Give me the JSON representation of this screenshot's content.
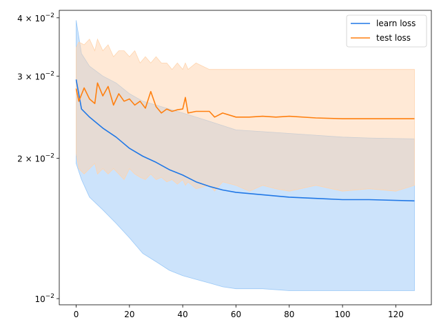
{
  "chart_data": {
    "type": "line",
    "title": "",
    "xlabel": "",
    "ylabel": "",
    "yscale": "log",
    "xlim": [
      -6.35,
      133.35
    ],
    "ylim": [
      0.0097,
      0.0415
    ],
    "grid": false,
    "legend_position": "top-right",
    "x_ticks": [
      0,
      20,
      40,
      60,
      80,
      100,
      120
    ],
    "x_tick_labels": [
      "0",
      "20",
      "40",
      "60",
      "80",
      "100",
      "120"
    ],
    "y_ticks": [
      0.01,
      0.02,
      0.03,
      0.04
    ],
    "y_tick_labels": [
      {
        "base": "10",
        "exp": "−2",
        "mant": ""
      },
      {
        "base": "10",
        "exp": "−2",
        "mant": "2 × "
      },
      {
        "base": "10",
        "exp": "−2",
        "mant": "3 × "
      },
      {
        "base": "10",
        "exp": "−2",
        "mant": "4 × "
      }
    ],
    "series": [
      {
        "name": "learn loss",
        "color": "#1f77e6",
        "band_color": "#99c8f7",
        "x": [
          0,
          2,
          5,
          10,
          15,
          20,
          25,
          30,
          35,
          40,
          45,
          50,
          55,
          60,
          70,
          80,
          90,
          100,
          110,
          127
        ],
        "mean": [
          0.0295,
          0.0255,
          0.0245,
          0.0232,
          0.0222,
          0.021,
          0.0202,
          0.0196,
          0.0189,
          0.0184,
          0.0178,
          0.0174,
          0.0171,
          0.0169,
          0.0167,
          0.0165,
          0.0164,
          0.0163,
          0.0163,
          0.0162
        ],
        "upper": [
          0.0395,
          0.0335,
          0.0315,
          0.03,
          0.029,
          0.0275,
          0.0265,
          0.026,
          0.0255,
          0.025,
          0.0245,
          0.024,
          0.0235,
          0.023,
          0.0228,
          0.0226,
          0.0224,
          0.0222,
          0.0221,
          0.022
        ],
        "lower": [
          0.0195,
          0.018,
          0.0165,
          0.0155,
          0.0145,
          0.0135,
          0.0125,
          0.012,
          0.0115,
          0.0112,
          0.011,
          0.0108,
          0.0106,
          0.0105,
          0.0105,
          0.0104,
          0.0104,
          0.0104,
          0.0104,
          0.0104
        ]
      },
      {
        "name": "test loss",
        "color": "#ff7f0e",
        "band_color": "#ffd4ad",
        "x": [
          0,
          1,
          3,
          5,
          7,
          8,
          10,
          12,
          14,
          16,
          18,
          20,
          22,
          24,
          26,
          28,
          30,
          32,
          34,
          36,
          38,
          40,
          41,
          42,
          45,
          50,
          52,
          55,
          60,
          65,
          70,
          75,
          80,
          90,
          100,
          110,
          120,
          127
        ],
        "mean": [
          0.0282,
          0.0265,
          0.0283,
          0.0268,
          0.0262,
          0.029,
          0.0272,
          0.0285,
          0.026,
          0.0275,
          0.0265,
          0.0268,
          0.026,
          0.0265,
          0.0256,
          0.0278,
          0.0258,
          0.025,
          0.0255,
          0.0252,
          0.0254,
          0.0255,
          0.027,
          0.025,
          0.0252,
          0.0252,
          0.0245,
          0.025,
          0.0245,
          0.0245,
          0.0246,
          0.0245,
          0.0246,
          0.0244,
          0.0243,
          0.0243,
          0.0243,
          0.0243
        ],
        "upper": [
          0.0345,
          0.0355,
          0.035,
          0.036,
          0.034,
          0.036,
          0.034,
          0.035,
          0.033,
          0.034,
          0.034,
          0.033,
          0.034,
          0.032,
          0.033,
          0.032,
          0.033,
          0.032,
          0.032,
          0.031,
          0.032,
          0.031,
          0.032,
          0.031,
          0.032,
          0.031,
          0.031,
          0.031,
          0.031,
          0.031,
          0.031,
          0.031,
          0.031,
          0.031,
          0.031,
          0.031,
          0.031,
          0.031
        ],
        "lower": [
          0.0205,
          0.019,
          0.0185,
          0.019,
          0.0195,
          0.0185,
          0.019,
          0.0185,
          0.019,
          0.0185,
          0.018,
          0.019,
          0.0185,
          0.0182,
          0.018,
          0.0185,
          0.018,
          0.0182,
          0.0178,
          0.018,
          0.0176,
          0.018,
          0.0175,
          0.0178,
          0.0172,
          0.0175,
          0.017,
          0.0178,
          0.0175,
          0.017,
          0.0175,
          0.0172,
          0.017,
          0.0175,
          0.017,
          0.0172,
          0.017,
          0.0175
        ]
      }
    ]
  }
}
